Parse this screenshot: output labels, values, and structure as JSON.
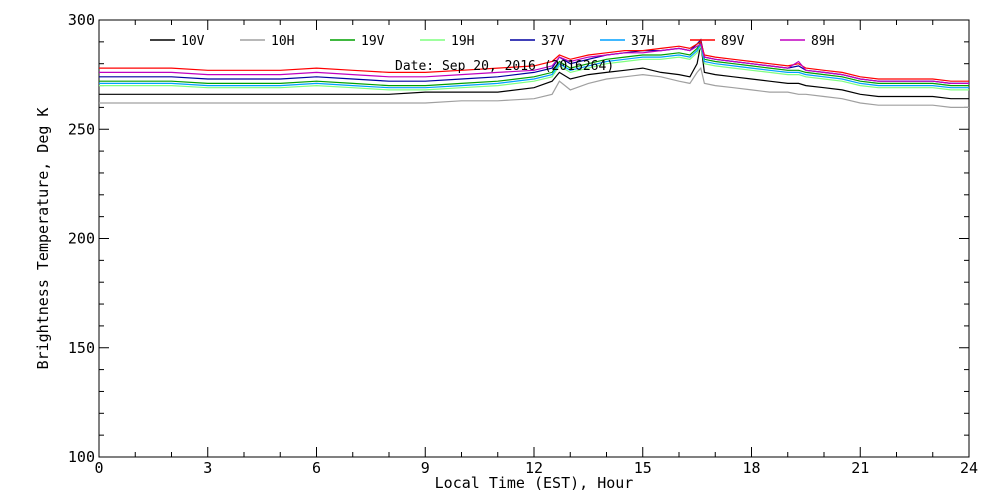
{
  "chart_data": {
    "type": "line",
    "title": "",
    "annotation": "Date: Sep 20, 2016 (2016264)",
    "xlabel": "Local Time (EST), Hour",
    "ylabel": "Brightness Temperature, Deg K",
    "xlim": [
      0,
      24
    ],
    "ylim": [
      100,
      300
    ],
    "x_ticks": [
      0,
      3,
      6,
      9,
      12,
      15,
      18,
      21,
      24
    ],
    "y_ticks": [
      100,
      150,
      200,
      250,
      300
    ],
    "grid": false,
    "legend": "top",
    "x": [
      0,
      1,
      2,
      3,
      4,
      5,
      6,
      7,
      8,
      9,
      10,
      11,
      12,
      12.5,
      12.7,
      13,
      13.5,
      14,
      14.5,
      15,
      15.5,
      16,
      16.3,
      16.5,
      16.6,
      16.7,
      17,
      17.5,
      18,
      18.5,
      19,
      19.3,
      19.5,
      20,
      20.5,
      21,
      21.5,
      22,
      22.5,
      23,
      23.5,
      24
    ],
    "series": [
      {
        "name": "10V",
        "color": "#000000",
        "values": [
          266,
          266,
          266,
          266,
          266,
          266,
          266,
          266,
          266,
          267,
          267,
          267,
          269,
          272,
          276,
          273,
          275,
          276,
          277,
          278,
          276,
          275,
          274,
          280,
          289,
          276,
          275,
          274,
          273,
          272,
          271,
          271,
          270,
          269,
          268,
          266,
          265,
          265,
          265,
          265,
          264,
          264
        ]
      },
      {
        "name": "10H",
        "color": "#a0a0a0",
        "values": [
          262,
          262,
          262,
          262,
          262,
          262,
          262,
          262,
          262,
          262,
          263,
          263,
          264,
          266,
          272,
          268,
          271,
          273,
          274,
          275,
          274,
          272,
          271,
          276,
          278,
          271,
          270,
          269,
          268,
          267,
          267,
          266,
          266,
          265,
          264,
          262,
          261,
          261,
          261,
          261,
          260,
          260
        ]
      },
      {
        "name": "19V",
        "color": "#00a000",
        "values": [
          272,
          272,
          272,
          271,
          271,
          271,
          272,
          271,
          270,
          270,
          271,
          272,
          274,
          276,
          281,
          278,
          280,
          282,
          283,
          284,
          284,
          285,
          284,
          287,
          290,
          282,
          281,
          280,
          279,
          278,
          277,
          277,
          276,
          275,
          274,
          272,
          271,
          271,
          271,
          271,
          270,
          270
        ]
      },
      {
        "name": "19H",
        "color": "#7fff7f",
        "values": [
          270,
          270,
          270,
          269,
          269,
          269,
          270,
          269,
          268,
          268,
          269,
          270,
          272,
          274,
          279,
          276,
          278,
          280,
          281,
          282,
          282,
          283,
          282,
          285,
          288,
          280,
          279,
          278,
          277,
          276,
          275,
          275,
          274,
          273,
          272,
          270,
          269,
          269,
          269,
          269,
          268,
          268
        ]
      },
      {
        "name": "37V",
        "color": "#0000a0",
        "values": [
          274,
          274,
          274,
          273,
          273,
          273,
          274,
          273,
          272,
          272,
          273,
          274,
          276,
          278,
          283,
          280,
          282,
          284,
          285,
          286,
          286,
          287,
          286,
          289,
          291,
          283,
          282,
          281,
          280,
          279,
          278,
          279,
          277,
          276,
          275,
          273,
          272,
          272,
          272,
          272,
          271,
          271
        ]
      },
      {
        "name": "37H",
        "color": "#00a0ff",
        "values": [
          271,
          271,
          271,
          270,
          270,
          270,
          271,
          270,
          269,
          269,
          270,
          271,
          273,
          275,
          280,
          277,
          279,
          281,
          282,
          283,
          283,
          284,
          283,
          286,
          289,
          281,
          280,
          279,
          278,
          277,
          276,
          276,
          275,
          274,
          273,
          271,
          270,
          270,
          270,
          270,
          269,
          269
        ]
      },
      {
        "name": "89V",
        "color": "#ff0000",
        "values": [
          278,
          278,
          278,
          277,
          277,
          277,
          278,
          277,
          276,
          276,
          277,
          278,
          279,
          281,
          284,
          282,
          284,
          285,
          286,
          286,
          287,
          288,
          287,
          289,
          290,
          284,
          283,
          282,
          281,
          280,
          279,
          280,
          278,
          277,
          276,
          274,
          273,
          273,
          273,
          273,
          272,
          272
        ]
      },
      {
        "name": "89H",
        "color": "#c000c0",
        "values": [
          276,
          276,
          276,
          275,
          275,
          275,
          276,
          275,
          274,
          274,
          275,
          276,
          277,
          279,
          283,
          281,
          283,
          284,
          285,
          285,
          286,
          287,
          286,
          288,
          289,
          283,
          282,
          281,
          280,
          279,
          278,
          281,
          277,
          276,
          275,
          273,
          272,
          272,
          272,
          272,
          271,
          271
        ]
      }
    ]
  }
}
